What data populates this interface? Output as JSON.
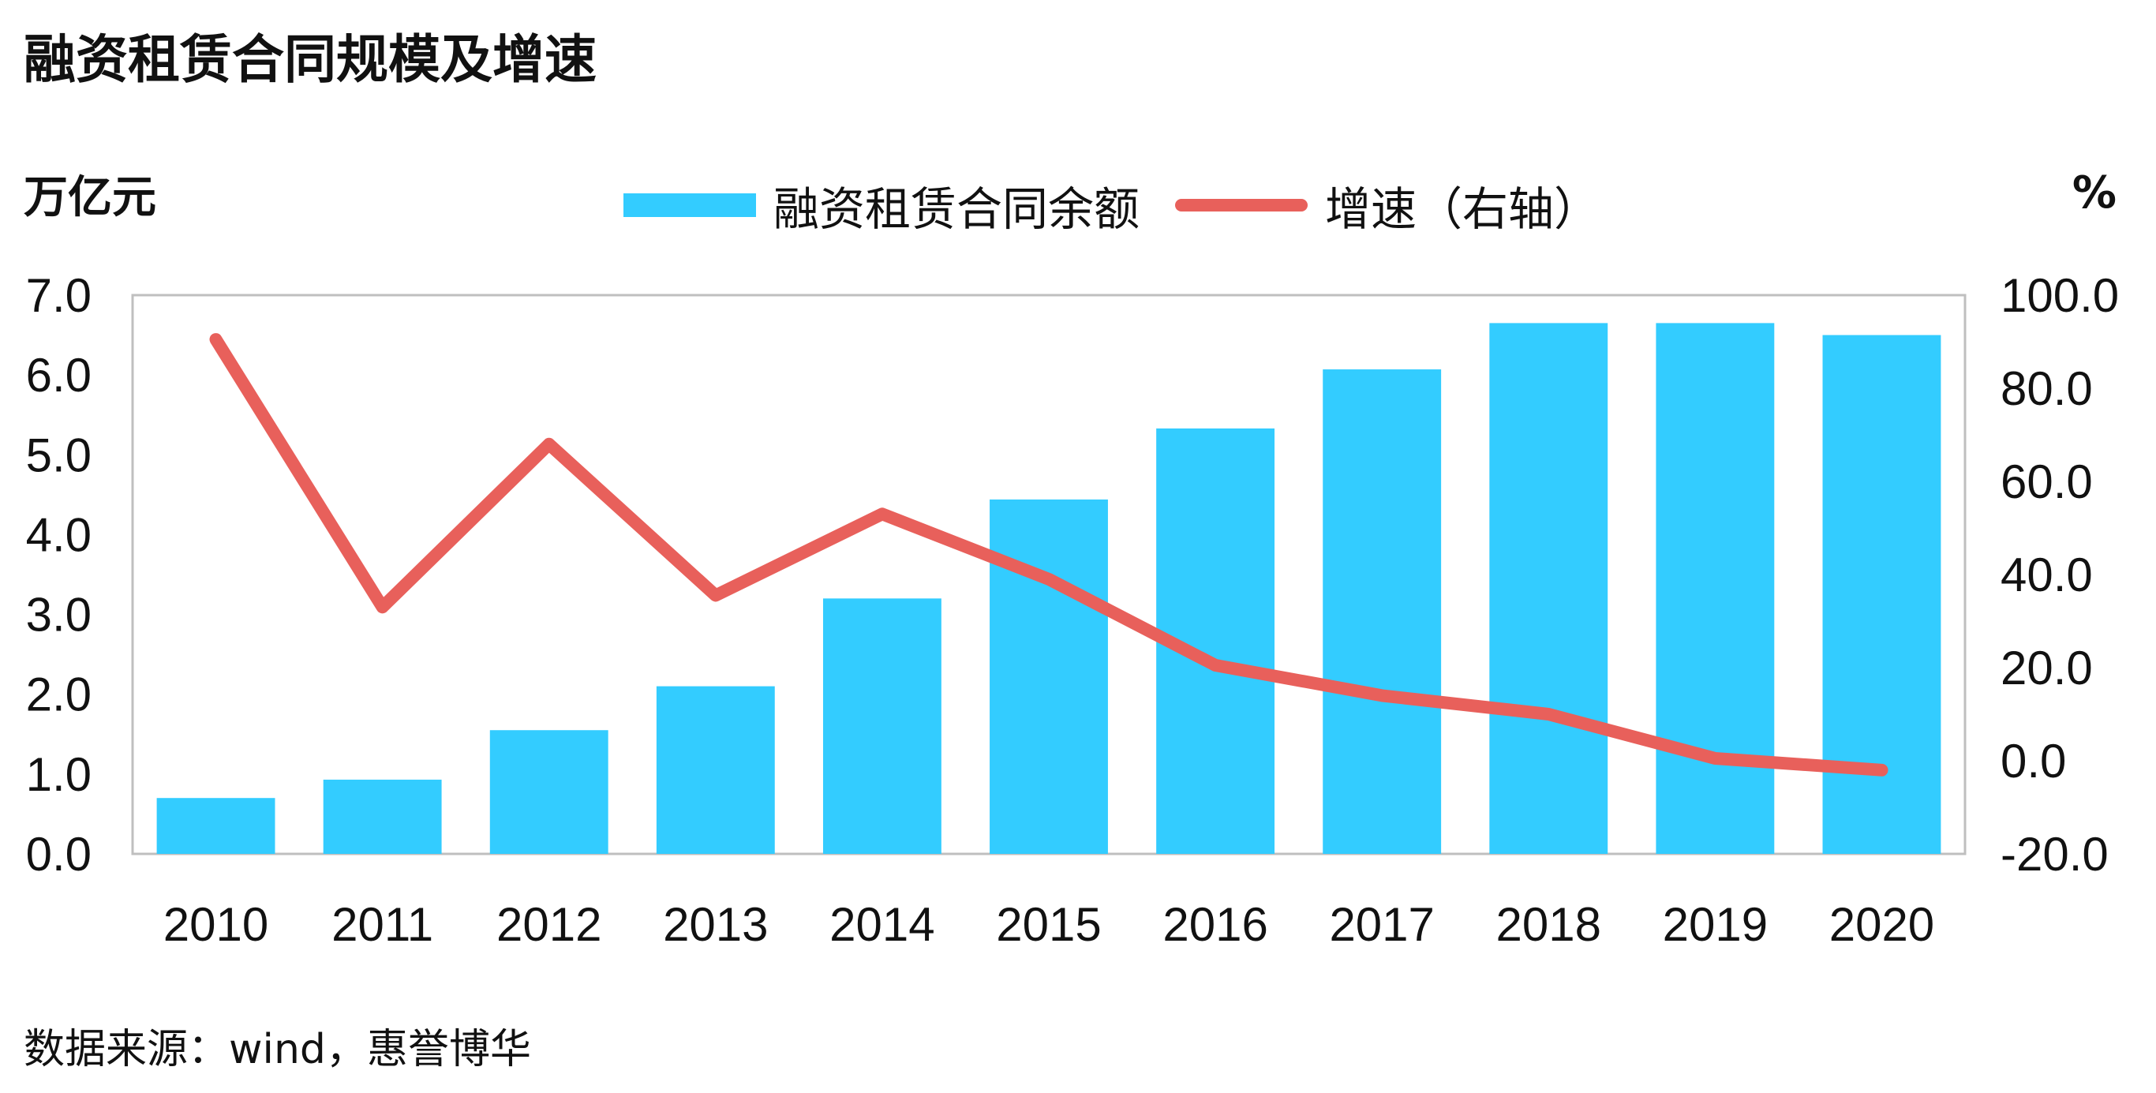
{
  "title": "融资租赁合同规模及增速",
  "left_unit": "万亿元",
  "right_unit": "%",
  "legend": {
    "bar_label": "融资租赁合同余额",
    "line_label": "增速（右轴）"
  },
  "source": "数据来源：wind，惠誉博华",
  "colors": {
    "bar": "#33CCFF",
    "line": "#E8605B",
    "axis": "#BFBFBF",
    "text": "#111111"
  },
  "chart_data": {
    "type": "bar",
    "categories": [
      "2010",
      "2011",
      "2012",
      "2013",
      "2014",
      "2015",
      "2016",
      "2017",
      "2018",
      "2019",
      "2020"
    ],
    "series": [
      {
        "name": "融资租赁合同余额",
        "type": "bar",
        "axis": "left",
        "values": [
          0.7,
          0.93,
          1.55,
          2.1,
          3.2,
          4.44,
          5.33,
          6.07,
          6.65,
          6.65,
          6.5
        ]
      },
      {
        "name": "增速（右轴）",
        "type": "line",
        "axis": "right",
        "values": [
          90.5,
          33.0,
          68.0,
          35.5,
          53.0,
          39.0,
          20.5,
          14.0,
          10.0,
          0.5,
          -2.0
        ]
      }
    ],
    "y_left": {
      "min": 0,
      "max": 7,
      "ticks": [
        "0.0",
        "1.0",
        "2.0",
        "3.0",
        "4.0",
        "5.0",
        "6.0",
        "7.0"
      ]
    },
    "y_right": {
      "min": -20,
      "max": 100,
      "ticks": [
        "-20.0",
        "0.0",
        "20.0",
        "40.0",
        "60.0",
        "80.0",
        "100.0"
      ]
    },
    "grid": false,
    "legend_position": "top-center"
  }
}
